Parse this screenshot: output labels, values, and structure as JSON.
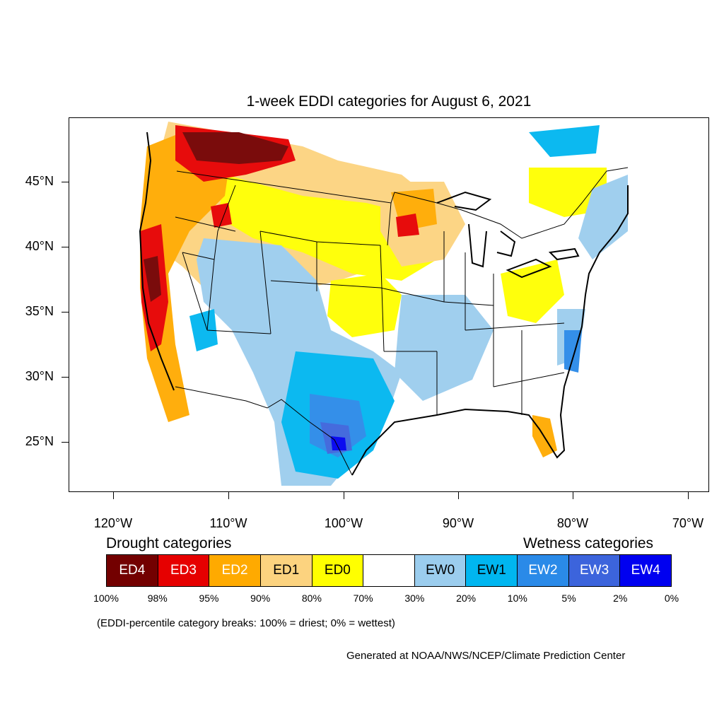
{
  "title": "1-week EDDI categories for August 6, 2021",
  "latitude_labels": [
    "45°N",
    "40°N",
    "35°N",
    "30°N",
    "25°N"
  ],
  "longitude_labels": [
    "120°W",
    "110°W",
    "100°W",
    "90°W",
    "80°W",
    "70°W"
  ],
  "legend": {
    "drought_heading": "Drought categories",
    "wetness_heading": "Wetness categories",
    "categories": [
      {
        "label": "ED4",
        "color": "#730000",
        "text_color": "#ffffff"
      },
      {
        "label": "ED3",
        "color": "#e60000",
        "text_color": "#ffffff"
      },
      {
        "label": "ED2",
        "color": "#ffaa00",
        "text_color": "#ffffff"
      },
      {
        "label": "ED1",
        "color": "#fcd37f",
        "text_color": "#000000"
      },
      {
        "label": "ED0",
        "color": "#ffff00",
        "text_color": "#000000"
      },
      {
        "label": "",
        "color": "#ffffff",
        "text_color": "#000000"
      },
      {
        "label": "EW0",
        "color": "#9bcdee",
        "text_color": "#000000"
      },
      {
        "label": "EW1",
        "color": "#00b6f0",
        "text_color": "#000000"
      },
      {
        "label": "EW2",
        "color": "#2a8ae8",
        "text_color": "#ffffff"
      },
      {
        "label": "EW3",
        "color": "#3c64dc",
        "text_color": "#ffffff"
      },
      {
        "label": "EW4",
        "color": "#0000f0",
        "text_color": "#ffffff"
      }
    ],
    "percentiles": [
      "100%",
      "98%",
      "95%",
      "90%",
      "80%",
      "70%",
      "30%",
      "20%",
      "10%",
      "5%",
      "2%",
      "0%"
    ]
  },
  "breaks_note": "(EDDI-percentile category breaks: 100% = driest; 0% = wettest)",
  "credit": "Generated at NOAA/NWS/NCEP/Climate Prediction Center"
}
